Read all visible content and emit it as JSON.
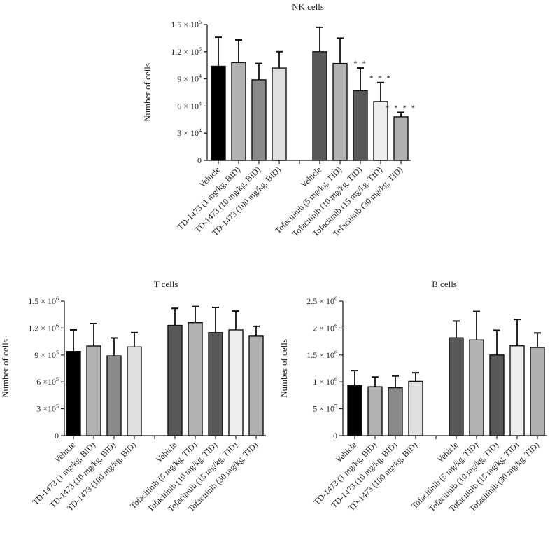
{
  "chart_data": [
    {
      "type": "bar",
      "title": "NK cells",
      "ylabel": "Number of cells",
      "xlabel": "",
      "ylim": [
        0,
        150000
      ],
      "yticks": [
        {
          "value": 0,
          "label": "0",
          "exp": ""
        },
        {
          "value": 30000,
          "label": "3 × 10",
          "exp": "4"
        },
        {
          "value": 60000,
          "label": "6 × 10",
          "exp": "4"
        },
        {
          "value": 90000,
          "label": "9 × 10",
          "exp": "4"
        },
        {
          "value": 120000,
          "label": "1.2 × 10",
          "exp": "5"
        },
        {
          "value": 150000,
          "label": "1.5 × 10",
          "exp": "5"
        }
      ],
      "categories": [
        "Vehicle",
        "TD-1473 (1 mg/kg, BID)",
        "TD-1473 (10 mg/kg, BID)",
        "TD-1473 (100 mg/kg, BID)",
        "",
        "Vehicle",
        "Tofacitinib (5 mg/kg, TID)",
        "Tofacitinib (10 mg/kg, TID)",
        "Tofacitinib (15 mg/kg, TID)",
        "Tofacitinib (30 mg/kg, TID)"
      ],
      "values": [
        104000,
        108000,
        89000,
        102000,
        null,
        120000,
        107000,
        77000,
        65000,
        48000
      ],
      "error_upper": [
        136000,
        133000,
        107000,
        120000,
        null,
        147000,
        135000,
        102000,
        86000,
        53000
      ],
      "significance": [
        "",
        "",
        "",
        "",
        "",
        "",
        "",
        "**",
        "***",
        "****"
      ],
      "colors": [
        "#000000",
        "#b2b2b2",
        "#8a8a8a",
        "#e0e0e0",
        "",
        "#58585a",
        "#b2b2b2",
        "#58585a",
        "#eeeeee",
        "#b0b0b0"
      ]
    },
    {
      "type": "bar",
      "title": "T cells",
      "ylabel": "Number of cells",
      "xlabel": "",
      "ylim": [
        0,
        1500000
      ],
      "yticks": [
        {
          "value": 0,
          "label": "0",
          "exp": ""
        },
        {
          "value": 300000,
          "label": "3 ×10",
          "exp": "5"
        },
        {
          "value": 600000,
          "label": "6 ×10",
          "exp": "5"
        },
        {
          "value": 900000,
          "label": "9 × 10",
          "exp": "5"
        },
        {
          "value": 1200000,
          "label": "1.2 × 10",
          "exp": "6"
        },
        {
          "value": 1500000,
          "label": "1.5 × 10",
          "exp": "6"
        }
      ],
      "categories": [
        "Vehicle",
        "TD-1473 (1 mg/kg, BID)",
        "TD-1473 (10 mg/kg, BID)",
        "TD-1473 (100 mg/kg, BID)",
        "",
        "Vehicle",
        "Tofacitinib (5 mg/kg, TID)",
        "Tofacitinib (10 mg/kg, TID)",
        "Tofacitinib (15 mg/kg, TID)",
        "Tofacitinib (30 mg/kg, TID)"
      ],
      "values": [
        940000,
        1000000,
        890000,
        990000,
        null,
        1230000,
        1260000,
        1150000,
        1180000,
        1110000
      ],
      "error_upper": [
        1180000,
        1250000,
        1090000,
        1150000,
        null,
        1420000,
        1440000,
        1430000,
        1390000,
        1220000
      ],
      "significance": [
        "",
        "",
        "",
        "",
        "",
        "",
        "",
        "",
        "",
        ""
      ],
      "colors": [
        "#000000",
        "#b2b2b2",
        "#8a8a8a",
        "#e0e0e0",
        "",
        "#58585a",
        "#b2b2b2",
        "#58585a",
        "#eeeeee",
        "#b0b0b0"
      ]
    },
    {
      "type": "bar",
      "title": "B cells",
      "ylabel": "Number of cells",
      "xlabel": "",
      "ylim": [
        0,
        2500000
      ],
      "yticks": [
        {
          "value": 0,
          "label": "0",
          "exp": ""
        },
        {
          "value": 500000,
          "label": "5 × 10",
          "exp": "5"
        },
        {
          "value": 1000000,
          "label": "1 × 10",
          "exp": "6"
        },
        {
          "value": 1500000,
          "label": "1.5 × 10",
          "exp": "6"
        },
        {
          "value": 2000000,
          "label": "2 × 10",
          "exp": "6"
        },
        {
          "value": 2500000,
          "label": "2.5 × 10",
          "exp": "6"
        }
      ],
      "categories": [
        "Vehicle",
        "TD-1473 (1 mg/kg, BID)",
        "TD-1473 (10 mg/kg, BID)",
        "TD-1473 (100 mg/kg, BID)",
        "",
        "Vehicle",
        "Tofacitinib (5 mg/kg, TID)",
        "Tofacitinib (10 mg/kg, TID)",
        "Tofacitinib (15 mg/kg, TID)",
        "Tofacitinib (30 mg/kg, TID)"
      ],
      "values": [
        930000,
        910000,
        890000,
        1010000,
        null,
        1820000,
        1780000,
        1500000,
        1670000,
        1640000
      ],
      "error_upper": [
        1210000,
        1090000,
        1110000,
        1170000,
        null,
        2130000,
        2310000,
        1960000,
        2160000,
        1910000
      ],
      "significance": [
        "",
        "",
        "",
        "",
        "",
        "",
        "",
        "",
        "",
        ""
      ],
      "colors": [
        "#000000",
        "#b2b2b2",
        "#8a8a8a",
        "#e0e0e0",
        "",
        "#58585a",
        "#b2b2b2",
        "#58585a",
        "#eeeeee",
        "#b0b0b0"
      ]
    }
  ]
}
